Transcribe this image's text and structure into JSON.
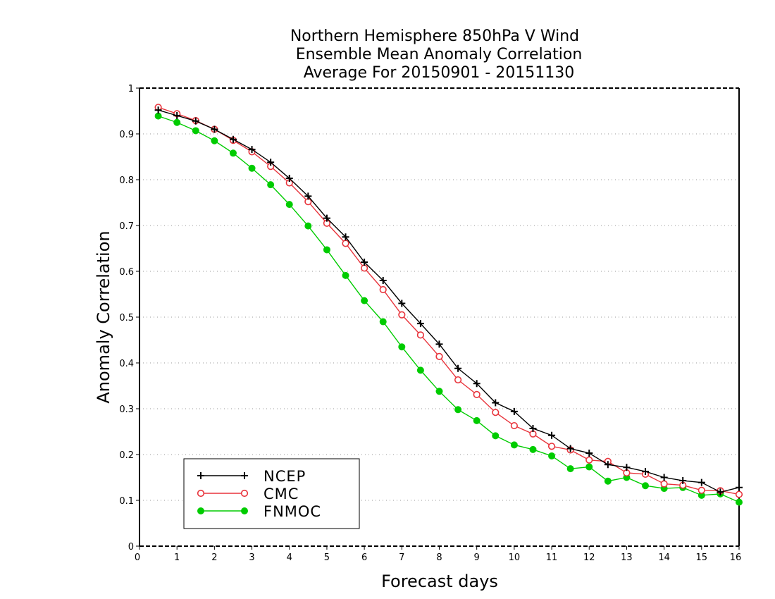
{
  "chart_data": {
    "type": "line",
    "title": [
      "Northern Hemisphere 850hPa V Wind",
      "Ensemble Mean Anomaly Correlation",
      "Average For 20150901 - 20151130"
    ],
    "xlabel": "Forecast days",
    "ylabel": "Anomaly Correlation",
    "xlim": [
      0,
      16
    ],
    "ylim": [
      0,
      1
    ],
    "xticks": [
      "0",
      "1",
      "2",
      "3",
      "4",
      "5",
      "6",
      "7",
      "8",
      "9",
      "10",
      "11",
      "12",
      "13",
      "14",
      "15",
      "16"
    ],
    "yticks": [
      "0",
      "0.1",
      "0.2",
      "0.3",
      "0.4",
      "0.5",
      "0.6",
      "0.7",
      "0.8",
      "0.9",
      "1"
    ],
    "grid": "horizontal dotted",
    "legend_position": "bottom-left",
    "x": [
      0.5,
      1,
      1.5,
      2,
      2.5,
      3,
      3.5,
      4,
      4.5,
      5,
      5.5,
      6,
      6.5,
      7,
      7.5,
      8,
      8.5,
      9,
      9.5,
      10,
      10.5,
      11,
      11.5,
      12,
      12.5,
      13,
      13.5,
      14,
      14.5,
      15,
      15.5,
      16
    ],
    "series": [
      {
        "name": "NCEP",
        "color": "#000000",
        "marker": "plus",
        "values": [
          0.952,
          0.94,
          0.928,
          0.91,
          0.888,
          0.866,
          0.838,
          0.803,
          0.764,
          0.716,
          0.675,
          0.62,
          0.58,
          0.53,
          0.486,
          0.441,
          0.388,
          0.355,
          0.313,
          0.294,
          0.257,
          0.242,
          0.213,
          0.203,
          0.178,
          0.172,
          0.163,
          0.15,
          0.143,
          0.139,
          0.118,
          0.128
        ]
      },
      {
        "name": "CMC",
        "color": "#e8343c",
        "marker": "open-circle",
        "values": [
          0.958,
          0.944,
          0.929,
          0.91,
          0.886,
          0.861,
          0.829,
          0.793,
          0.752,
          0.705,
          0.661,
          0.607,
          0.56,
          0.505,
          0.461,
          0.414,
          0.363,
          0.331,
          0.292,
          0.263,
          0.245,
          0.218,
          0.21,
          0.188,
          0.185,
          0.16,
          0.157,
          0.136,
          0.133,
          0.122,
          0.121,
          0.113
        ]
      },
      {
        "name": "FNMOC",
        "color": "#00cc00",
        "marker": "filled-circle",
        "values": [
          0.939,
          0.925,
          0.907,
          0.885,
          0.858,
          0.825,
          0.789,
          0.746,
          0.699,
          0.647,
          0.591,
          0.536,
          0.49,
          0.435,
          0.384,
          0.338,
          0.298,
          0.274,
          0.241,
          0.221,
          0.211,
          0.197,
          0.169,
          0.173,
          0.142,
          0.15,
          0.132,
          0.126,
          0.128,
          0.111,
          0.114,
          0.096
        ]
      }
    ]
  }
}
